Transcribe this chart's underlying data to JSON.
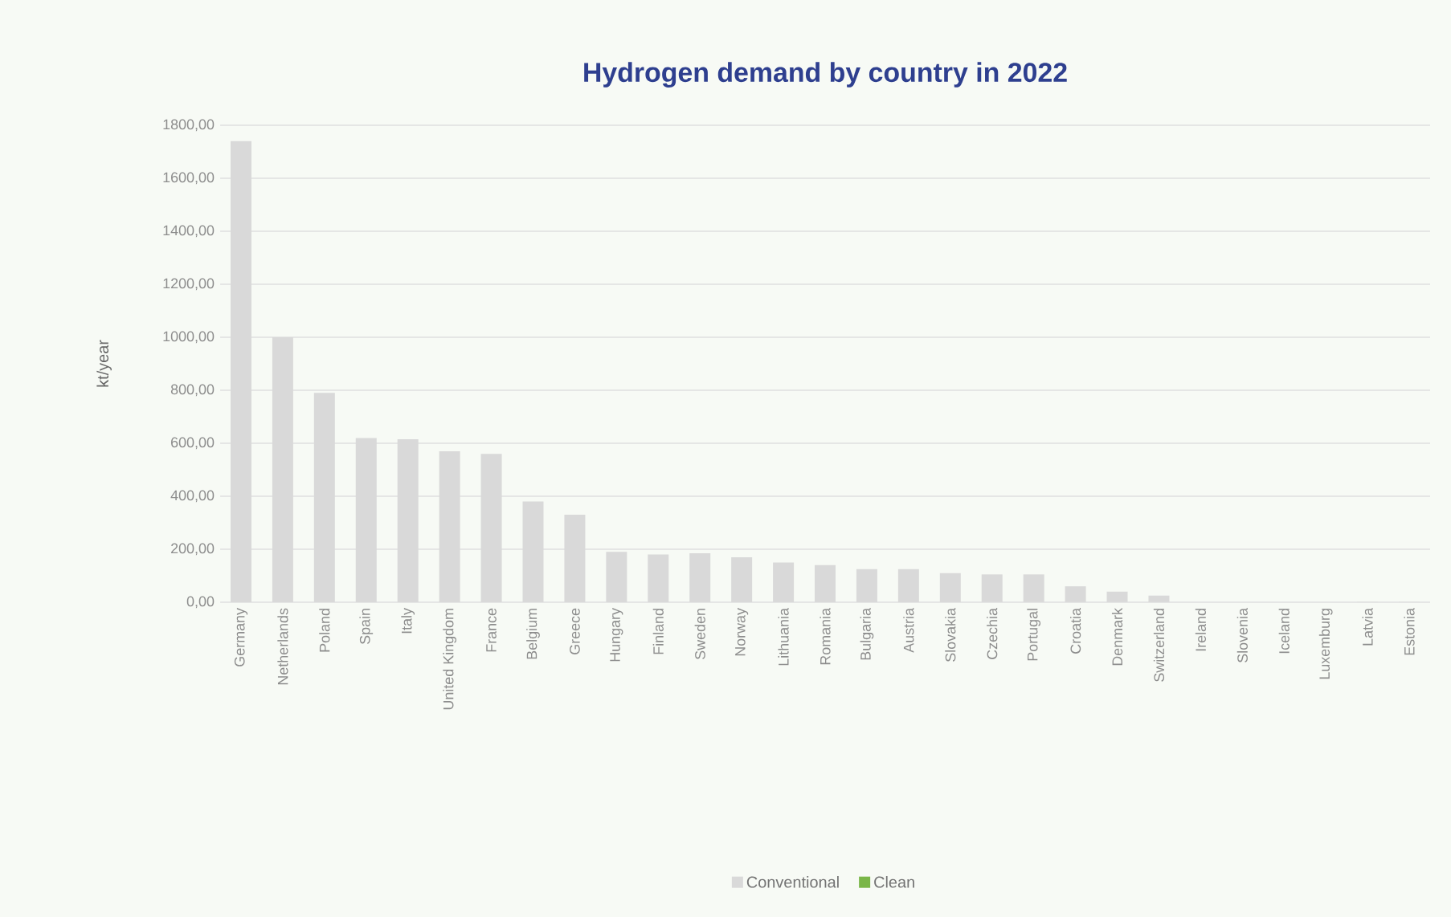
{
  "chart_data": {
    "type": "bar",
    "title": "Hydrogen demand by country in 2022",
    "ylabel": "kt/year",
    "categories": [
      "Germany",
      "Netherlands",
      "Poland",
      "Spain",
      "Italy",
      "United Kingdom",
      "France",
      "Belgium",
      "Greece",
      "Hungary",
      "Finland",
      "Sweden",
      "Norway",
      "Lithuania",
      "Romania",
      "Bulgaria",
      "Austria",
      "Slovakia",
      "Czechia",
      "Portugal",
      "Croatia",
      "Denmark",
      "Switzerland",
      "Ireland",
      "Slovenia",
      "Iceland",
      "Luxemburg",
      "Latvia",
      "Estonia"
    ],
    "series": [
      {
        "name": "Conventional",
        "color": "#d9d9d9",
        "values": [
          1740,
          1000,
          790,
          620,
          615,
          570,
          560,
          380,
          330,
          190,
          180,
          185,
          170,
          150,
          140,
          125,
          125,
          110,
          105,
          105,
          60,
          40,
          25,
          null,
          null,
          null,
          null,
          1,
          1
        ]
      },
      {
        "name": "Clean",
        "color": "#7ab648",
        "values": [
          0,
          0,
          0,
          0,
          0,
          0,
          0,
          0,
          0,
          0,
          0,
          0,
          0,
          0,
          0,
          0,
          0,
          0,
          0,
          0,
          0,
          0,
          0,
          null,
          null,
          null,
          null,
          0,
          0
        ]
      }
    ],
    "stacked": true,
    "ylim": [
      0,
      1800
    ],
    "yticks": [
      {
        "value": 0,
        "label": "0,00"
      },
      {
        "value": 200,
        "label": "200,00"
      },
      {
        "value": 400,
        "label": "400,00"
      },
      {
        "value": 600,
        "label": "600,00"
      },
      {
        "value": 800,
        "label": "800,00"
      },
      {
        "value": 1000,
        "label": "1000,00"
      },
      {
        "value": 1200,
        "label": "1200,00"
      },
      {
        "value": 1400,
        "label": "1400,00"
      },
      {
        "value": 1600,
        "label": "1600,00"
      },
      {
        "value": 1800,
        "label": "1800,00"
      }
    ],
    "grid": "y",
    "legend": "bottom"
  }
}
